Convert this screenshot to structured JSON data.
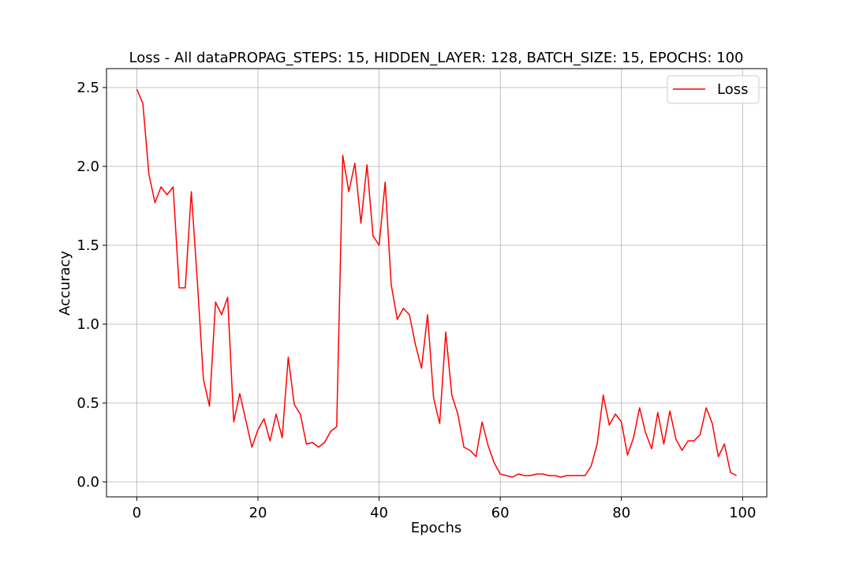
{
  "chart_data": {
    "type": "line",
    "title": "Loss - All dataPROPAG_STEPS: 15, HIDDEN_LAYER: 128, BATCH_SIZE: 15, EPOCHS: 100",
    "xlabel": "Epochs",
    "ylabel": "Accuracy",
    "xlim": [
      -5,
      104
    ],
    "ylim": [
      -0.095,
      2.62
    ],
    "xticks": [
      0,
      20,
      40,
      60,
      80,
      100
    ],
    "xtick_labels": [
      "0",
      "20",
      "40",
      "60",
      "80",
      "100"
    ],
    "yticks": [
      0.0,
      0.5,
      1.0,
      1.5,
      2.0,
      2.5
    ],
    "ytick_labels": [
      "0.0",
      "0.5",
      "1.0",
      "1.5",
      "2.0",
      "2.5"
    ],
    "grid": true,
    "legend_position": "top-right",
    "series": [
      {
        "name": "Loss",
        "color": "#ff0000",
        "x": [
          0,
          1,
          2,
          3,
          4,
          5,
          6,
          7,
          8,
          9,
          10,
          11,
          12,
          13,
          14,
          15,
          16,
          17,
          18,
          19,
          20,
          21,
          22,
          23,
          24,
          25,
          26,
          27,
          28,
          29,
          30,
          31,
          32,
          33,
          34,
          35,
          36,
          37,
          38,
          39,
          40,
          41,
          42,
          43,
          44,
          45,
          46,
          47,
          48,
          49,
          50,
          51,
          52,
          53,
          54,
          55,
          56,
          57,
          58,
          59,
          60,
          61,
          62,
          63,
          64,
          65,
          66,
          67,
          68,
          69,
          70,
          71,
          72,
          73,
          74,
          75,
          76,
          77,
          78,
          79,
          80,
          81,
          82,
          83,
          84,
          85,
          86,
          87,
          88,
          89,
          90,
          91,
          92,
          93,
          94,
          95,
          96,
          97,
          98,
          99
        ],
        "values": [
          2.49,
          2.4,
          1.95,
          1.77,
          1.87,
          1.82,
          1.87,
          1.23,
          1.23,
          1.84,
          1.27,
          0.65,
          0.48,
          1.14,
          1.06,
          1.17,
          0.38,
          0.56,
          0.39,
          0.22,
          0.33,
          0.4,
          0.26,
          0.43,
          0.28,
          0.79,
          0.49,
          0.43,
          0.24,
          0.25,
          0.22,
          0.25,
          0.32,
          0.35,
          2.07,
          1.84,
          2.02,
          1.64,
          2.01,
          1.56,
          1.5,
          1.9,
          1.25,
          1.03,
          1.1,
          1.06,
          0.87,
          0.72,
          1.06,
          0.53,
          0.37,
          0.95,
          0.55,
          0.43,
          0.22,
          0.2,
          0.16,
          0.38,
          0.23,
          0.12,
          0.05,
          0.04,
          0.03,
          0.05,
          0.04,
          0.04,
          0.05,
          0.05,
          0.04,
          0.04,
          0.03,
          0.04,
          0.04,
          0.04,
          0.04,
          0.1,
          0.24,
          0.55,
          0.36,
          0.43,
          0.38,
          0.17,
          0.28,
          0.47,
          0.31,
          0.21,
          0.44,
          0.24,
          0.45,
          0.27,
          0.2,
          0.26,
          0.26,
          0.3,
          0.47,
          0.37,
          0.16,
          0.24,
          0.06,
          0.04
        ]
      }
    ]
  }
}
